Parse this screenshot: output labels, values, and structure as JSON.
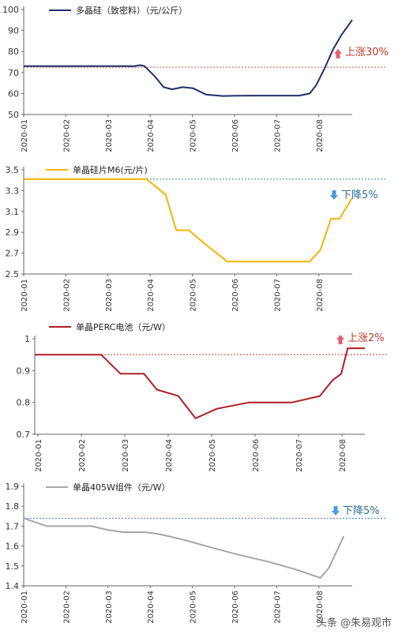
{
  "watermark": "头条 @朱易观市",
  "chart_data": [
    {
      "type": "line",
      "legend": "多晶硅（致密料）（元/公斤）",
      "color": "#1f2f6b",
      "ref_color": "#d9534f",
      "ylim": [
        50,
        100
      ],
      "yticks": [
        50,
        60,
        70,
        80,
        90,
        100
      ],
      "ytick_labels": [
        "50",
        "60",
        "70",
        "80",
        "90",
        "100"
      ],
      "xlim": [
        0,
        7.75
      ],
      "months": [
        "2020-01",
        "2020-02",
        "2020-03",
        "2020-04",
        "2020-05",
        "2020-06",
        "2020-07",
        "2020-08"
      ],
      "x": [
        0,
        1,
        2,
        2.3,
        2.6,
        2.75,
        2.85,
        3.1,
        3.3,
        3.5,
        3.75,
        4.0,
        4.3,
        4.7,
        5.0,
        5.5,
        6.0,
        6.5,
        6.75,
        6.9,
        7.1,
        7.3,
        7.5,
        7.75
      ],
      "y": [
        73,
        73,
        73,
        73,
        73,
        73.5,
        73,
        68,
        63,
        62,
        63,
        62.5,
        59.5,
        58.8,
        58.9,
        59,
        59,
        59,
        60,
        64,
        72,
        81,
        88,
        95
      ],
      "ref_line": 72.5,
      "annotation": "上涨30%",
      "annotation_dir": "up",
      "annotation_color": "#c0392b"
    },
    {
      "type": "line",
      "legend": "单晶硅片M6(元/片)",
      "color": "#f5b400",
      "ref_color": "#3a7fc4",
      "ylim": [
        2.5,
        3.5
      ],
      "yticks": [
        2.5,
        2.7,
        2.9,
        3.1,
        3.3,
        3.5
      ],
      "ytick_labels": [
        "2.5",
        "2.7",
        "2.9",
        "3.1",
        "3.3",
        "3.5"
      ],
      "xlim": [
        0,
        7.75
      ],
      "months": [
        "2020-01",
        "2020-02",
        "2020-03",
        "2020-04",
        "2020-05",
        "2020-06",
        "2020-07",
        "2020-08"
      ],
      "x": [
        0,
        1,
        2,
        2.9,
        3.35,
        3.6,
        3.9,
        4.3,
        4.8,
        5.3,
        5.8,
        6.3,
        6.75,
        7.0,
        7.25,
        7.45,
        7.75
      ],
      "y": [
        3.41,
        3.41,
        3.41,
        3.41,
        3.26,
        2.92,
        2.92,
        2.78,
        2.62,
        2.62,
        2.62,
        2.62,
        2.62,
        2.73,
        3.03,
        3.03,
        3.23
      ],
      "ref_line": 3.41,
      "annotation": "下降5%",
      "annotation_dir": "down",
      "annotation_color": "#2f6f8f"
    },
    {
      "type": "line",
      "legend": "单晶PERC电池（元/W）",
      "color": "#b01c24",
      "ref_color": "#c0392b",
      "ylim": [
        0.7,
        1.0
      ],
      "yticks": [
        0.7,
        0.8,
        0.9,
        1.0
      ],
      "ytick_labels": [
        "0.7",
        "0.8",
        "0.9",
        "1"
      ],
      "xlim": [
        0,
        7.7
      ],
      "months": [
        "2020-01",
        "2020-02",
        "2020-03",
        "2020-04",
        "2020-05",
        "2020-06",
        "2020-07",
        "2020-08"
      ],
      "x": [
        0,
        1.0,
        1.55,
        2.0,
        2.55,
        2.85,
        3.35,
        3.75,
        4.25,
        5.0,
        6.0,
        6.65,
        6.95,
        7.15,
        7.3,
        7.7
      ],
      "y": [
        0.95,
        0.95,
        0.95,
        0.89,
        0.89,
        0.84,
        0.82,
        0.75,
        0.78,
        0.8,
        0.8,
        0.82,
        0.87,
        0.89,
        0.97,
        0.97
      ],
      "ref_line": 0.95,
      "annotation": "上涨2%",
      "annotation_dir": "up",
      "annotation_color": "#c0392b"
    },
    {
      "type": "line",
      "legend": "单晶405W组件（元/W）",
      "color": "#a6a6a6",
      "ref_color": "#3a7fc4",
      "ylim": [
        1.4,
        1.9
      ],
      "yticks": [
        1.4,
        1.5,
        1.6,
        1.7,
        1.8,
        1.9
      ],
      "ytick_labels": [
        "1.4",
        "1.5",
        "1.6",
        "1.7",
        "1.8",
        "1.9"
      ],
      "xlim": [
        0,
        7.75
      ],
      "months": [
        "2020-01",
        "2020-02",
        "2020-03",
        "2020-04",
        "2020-05",
        "2020-06",
        "2020-07",
        "2020-08"
      ],
      "x": [
        0,
        0.55,
        1.0,
        1.6,
        2.0,
        2.35,
        2.85,
        3.2,
        3.8,
        4.3,
        5.0,
        5.8,
        6.45,
        7.0,
        7.2,
        7.55
      ],
      "y": [
        1.74,
        1.7,
        1.7,
        1.7,
        1.68,
        1.67,
        1.67,
        1.66,
        1.63,
        1.6,
        1.56,
        1.52,
        1.48,
        1.44,
        1.49,
        1.65
      ],
      "ref_line": 1.74,
      "annotation": "下降5%",
      "annotation_dir": "down",
      "annotation_color": "#2f6f8f"
    }
  ]
}
